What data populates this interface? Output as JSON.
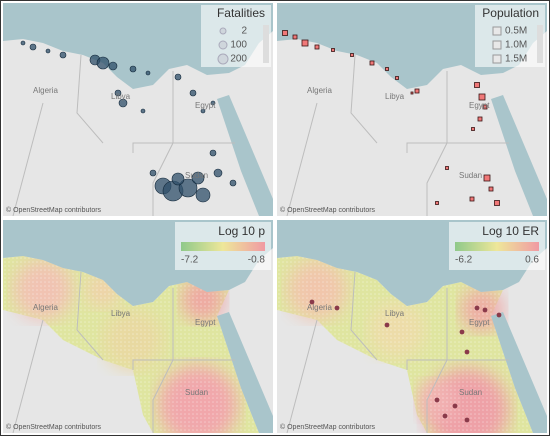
{
  "panels": [
    {
      "title": "Fatalities",
      "legend": [
        "2",
        "100",
        "200"
      ],
      "countries": [
        "Algeria",
        "Libya",
        "Egypt",
        "Sudan"
      ],
      "attribution": "© OpenStreetMap contributors"
    },
    {
      "title": "Population",
      "legend": [
        "0.5M",
        "1.0M",
        "1.5M"
      ],
      "countries": [
        "Algeria",
        "Libya",
        "Egypt",
        "Sudan"
      ],
      "attribution": "© OpenStreetMap contributors"
    },
    {
      "title": "Log 10 p",
      "legend": [
        "-7.2",
        "-0.8"
      ],
      "countries": [
        "Algeria",
        "Libya",
        "Egypt",
        "Sudan"
      ],
      "attribution": "© OpenStreetMap contributors"
    },
    {
      "title": "Log 10 ER",
      "legend": [
        "-6.2",
        "0.6"
      ],
      "countries": [
        "Algeria",
        "Libya",
        "Egypt",
        "Sudan"
      ],
      "attribution": "© OpenStreetMap contributors"
    }
  ]
}
